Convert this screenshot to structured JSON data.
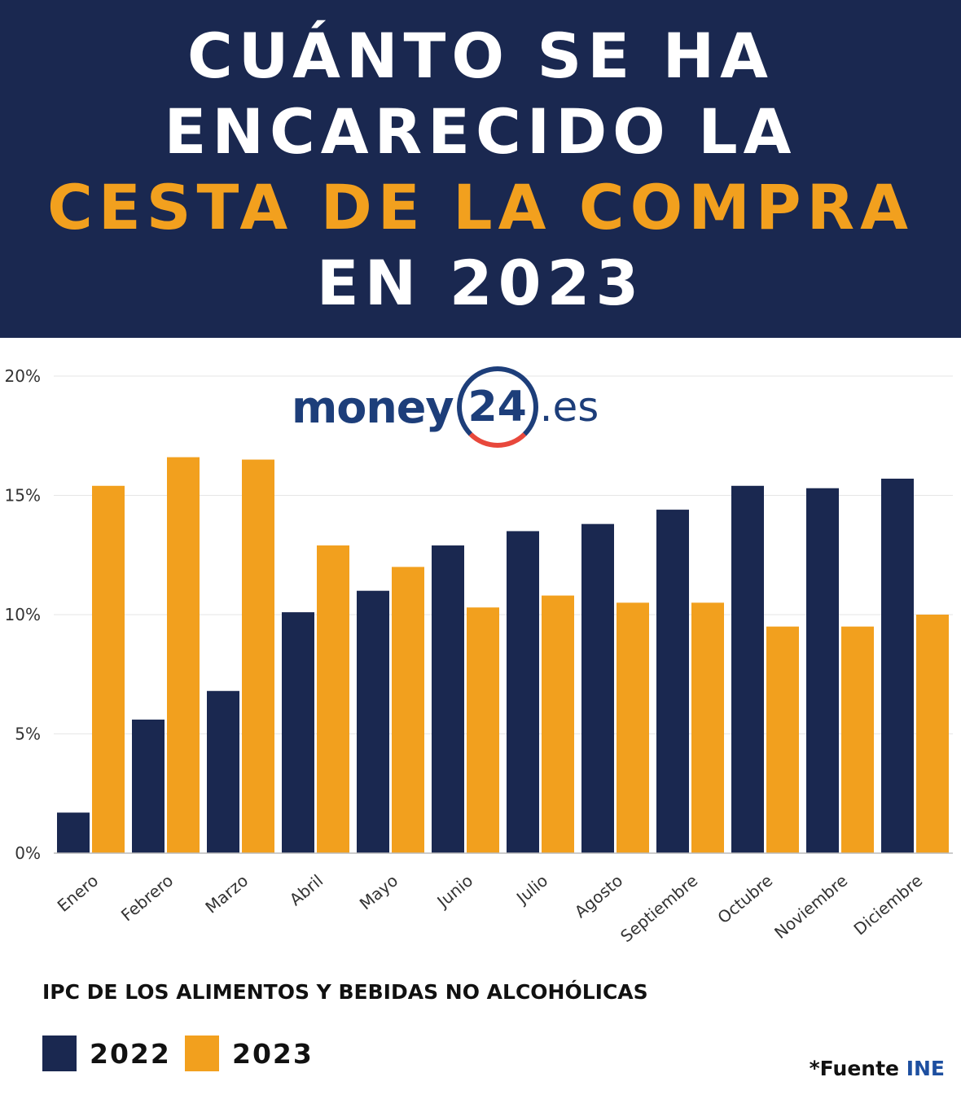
{
  "header": {
    "line1": "CUÁNTO SE HA",
    "line2": "ENCARECIDO LA",
    "line3": "CESTA DE LA COMPRA",
    "line4": "EN 2023"
  },
  "logo": {
    "text1": "money",
    "text2": "24",
    "text3": ".es"
  },
  "colors": {
    "navy": "#1a2850",
    "orange": "#f2a01e",
    "grid": "#e6e6e6"
  },
  "chart_data": {
    "type": "bar",
    "title": "IPC DE LOS ALIMENTOS Y BEBIDAS NO ALCOHÓLICAS",
    "categories": [
      "Enero",
      "Febrero",
      "Marzo",
      "Abril",
      "Mayo",
      "Junio",
      "Julio",
      "Agosto",
      "Septiembre",
      "Octubre",
      "Noviembre",
      "Diciembre"
    ],
    "series": [
      {
        "name": "2022",
        "color": "#1a2850",
        "values": [
          1.7,
          5.6,
          6.8,
          10.1,
          11.0,
          12.9,
          13.5,
          13.8,
          14.4,
          15.4,
          15.3,
          15.7
        ]
      },
      {
        "name": "2023",
        "color": "#f2a01e",
        "values": [
          15.4,
          16.6,
          16.5,
          12.9,
          12.0,
          10.3,
          10.8,
          10.5,
          10.5,
          9.5,
          9.5,
          10.0
        ]
      }
    ],
    "yticks": [
      "0%",
      "5%",
      "10%",
      "15%",
      "20%"
    ],
    "ytick_values": [
      0,
      5,
      10,
      15,
      20
    ],
    "ylim": [
      0,
      20
    ],
    "grid": true,
    "legend_position": "bottom-left"
  },
  "source": {
    "prefix": "*Fuente ",
    "name": "INE"
  }
}
